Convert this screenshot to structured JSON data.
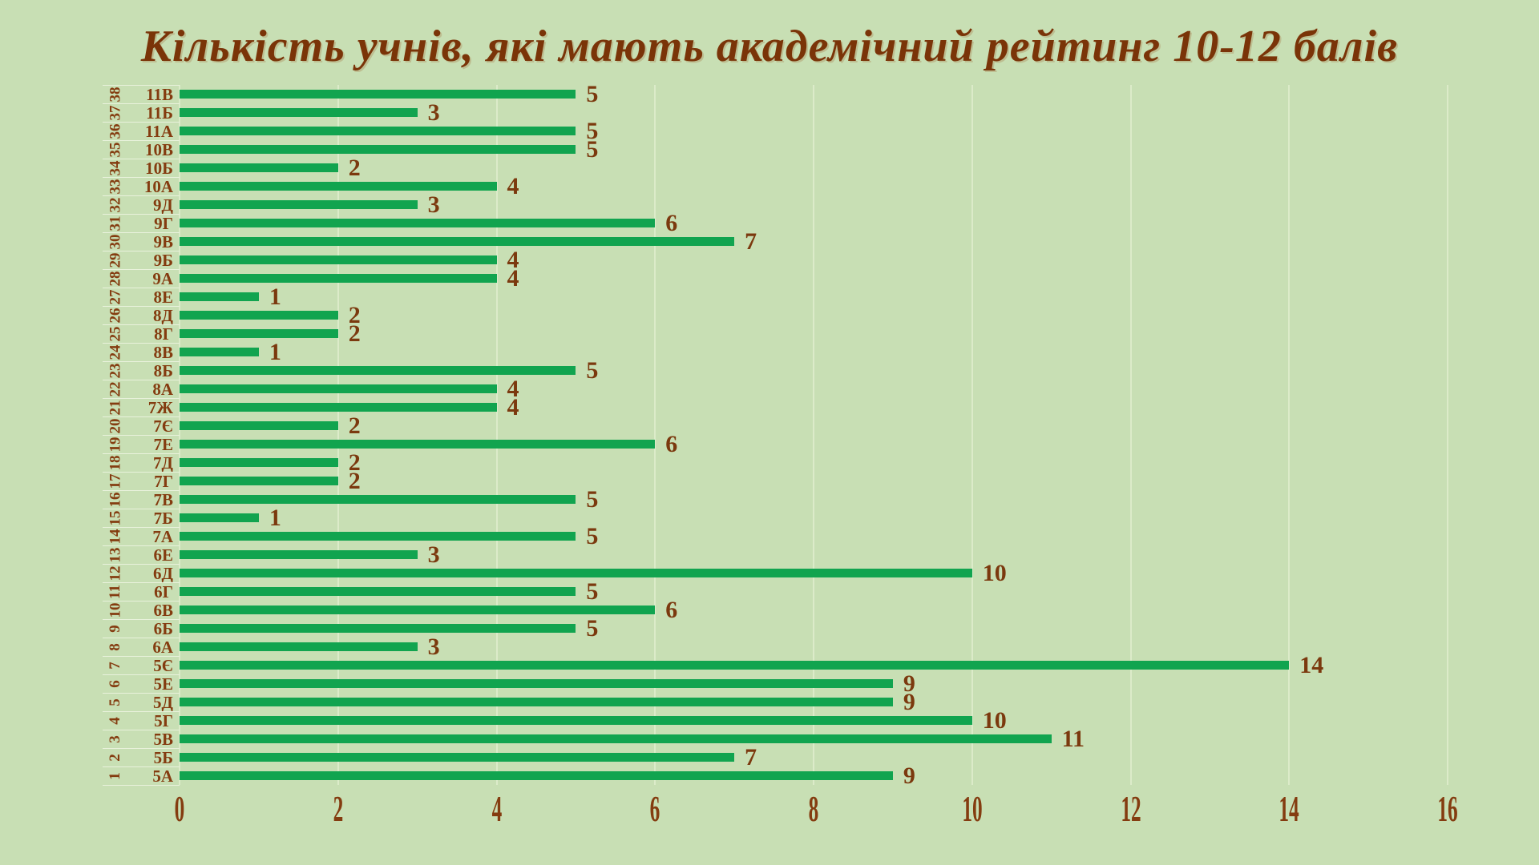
{
  "title": "Кількість учнів, які мають академічний рейтинг 10-12 балів",
  "colors": {
    "background": "#c8dfb4",
    "bar": "#11a44f",
    "text_brown": "#843c10",
    "title_brown": "#7a3408",
    "gridline": "#dcebc9"
  },
  "chart_data": {
    "type": "bar",
    "orientation": "horizontal",
    "title": "Кількість учнів, які мають академічний рейтинг 10-12 балів",
    "xlabel": "",
    "ylabel": "",
    "xlim": [
      0,
      16
    ],
    "x_ticks": [
      0,
      2,
      4,
      6,
      8,
      10,
      12,
      14,
      16
    ],
    "grid": true,
    "legend": false,
    "order_note": "rows listed top-to-bottom as displayed; n is the rotated row index shown on the far left",
    "rows": [
      {
        "n": 38,
        "label": "11В",
        "value": 5
      },
      {
        "n": 37,
        "label": "11Б",
        "value": 3
      },
      {
        "n": 36,
        "label": "11А",
        "value": 5
      },
      {
        "n": 35,
        "label": "10В",
        "value": 5
      },
      {
        "n": 34,
        "label": "10Б",
        "value": 2
      },
      {
        "n": 33,
        "label": "10А",
        "value": 4
      },
      {
        "n": 32,
        "label": "9Д",
        "value": 3
      },
      {
        "n": 31,
        "label": "9Г",
        "value": 6
      },
      {
        "n": 30,
        "label": "9В",
        "value": 7
      },
      {
        "n": 29,
        "label": "9Б",
        "value": 4
      },
      {
        "n": 28,
        "label": "9А",
        "value": 4
      },
      {
        "n": 27,
        "label": "8Е",
        "value": 1
      },
      {
        "n": 26,
        "label": "8Д",
        "value": 2
      },
      {
        "n": 25,
        "label": "8Г",
        "value": 2
      },
      {
        "n": 24,
        "label": "8В",
        "value": 1
      },
      {
        "n": 23,
        "label": "8Б",
        "value": 5
      },
      {
        "n": 22,
        "label": "8А",
        "value": 4
      },
      {
        "n": 21,
        "label": "7Ж",
        "value": 4
      },
      {
        "n": 20,
        "label": "7Є",
        "value": 2
      },
      {
        "n": 19,
        "label": "7Е",
        "value": 6
      },
      {
        "n": 18,
        "label": "7Д",
        "value": 2
      },
      {
        "n": 17,
        "label": "7Г",
        "value": 2
      },
      {
        "n": 16,
        "label": "7В",
        "value": 5
      },
      {
        "n": 15,
        "label": "7Б",
        "value": 1
      },
      {
        "n": 14,
        "label": "7А",
        "value": 5
      },
      {
        "n": 13,
        "label": "6Е",
        "value": 3
      },
      {
        "n": 12,
        "label": "6Д",
        "value": 10
      },
      {
        "n": 11,
        "label": "6Г",
        "value": 5
      },
      {
        "n": 10,
        "label": "6В",
        "value": 6
      },
      {
        "n": 9,
        "label": "6Б",
        "value": 5
      },
      {
        "n": 8,
        "label": "6А",
        "value": 3
      },
      {
        "n": 7,
        "label": "5Є",
        "value": 14
      },
      {
        "n": 6,
        "label": "5Е",
        "value": 9
      },
      {
        "n": 5,
        "label": "5Д",
        "value": 9
      },
      {
        "n": 4,
        "label": "5Г",
        "value": 10
      },
      {
        "n": 3,
        "label": "5В",
        "value": 11
      },
      {
        "n": 2,
        "label": "5Б",
        "value": 7
      },
      {
        "n": 1,
        "label": "5А",
        "value": 9
      }
    ],
    "categories": [
      "11В",
      "11Б",
      "11А",
      "10В",
      "10Б",
      "10А",
      "9Д",
      "9Г",
      "9В",
      "9Б",
      "9А",
      "8Е",
      "8Д",
      "8Г",
      "8В",
      "8Б",
      "8А",
      "7Ж",
      "7Є",
      "7Е",
      "7Д",
      "7Г",
      "7В",
      "7Б",
      "7А",
      "6Е",
      "6Д",
      "6Г",
      "6В",
      "6Б",
      "6А",
      "5Є",
      "5Е",
      "5Д",
      "5Г",
      "5В",
      "5Б",
      "5А"
    ],
    "values": [
      5,
      3,
      5,
      5,
      2,
      4,
      3,
      6,
      7,
      4,
      4,
      1,
      2,
      2,
      1,
      5,
      4,
      4,
      2,
      6,
      2,
      2,
      5,
      1,
      5,
      3,
      10,
      5,
      6,
      5,
      3,
      14,
      9,
      9,
      10,
      11,
      7,
      9
    ]
  }
}
